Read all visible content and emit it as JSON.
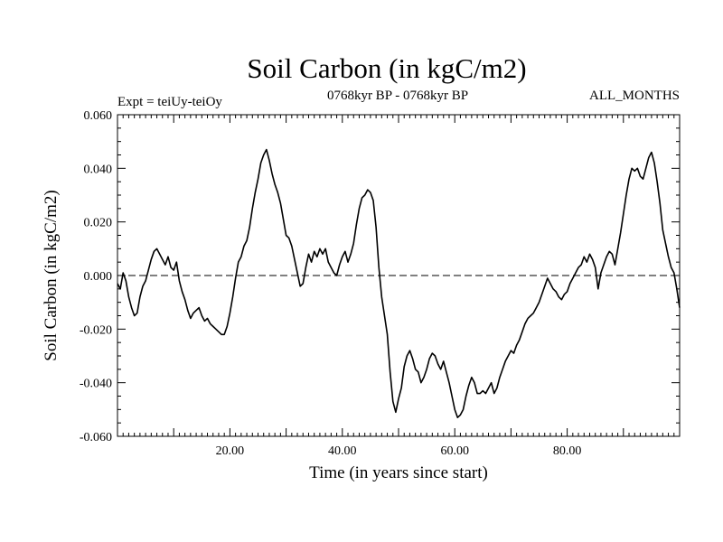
{
  "chart_data": {
    "type": "line",
    "title": "Soil Carbon (in kgC/m2)",
    "subtitle_left": "Expt = teiUy-teiOy",
    "subtitle_center": "0768kyr BP - 0768kyr BP",
    "subtitle_right": "ALL_MONTHS",
    "xlabel": "Time (in years since start)",
    "ylabel": "Soil Carbon (in kgC/m2)",
    "xlim": [
      0,
      100
    ],
    "ylim": [
      -0.06,
      0.06
    ],
    "xticks": [
      20,
      40,
      60,
      80
    ],
    "xtick_labels": [
      "20.00",
      "40.00",
      "60.00",
      "80.00"
    ],
    "yticks": [
      0.06,
      0.04,
      0.02,
      0,
      -0.02,
      -0.04,
      -0.06
    ],
    "ytick_labels": [
      "0.060",
      "0.040",
      "0.020",
      "0.000",
      "-0.020",
      "-0.040",
      "-0.060"
    ],
    "reference_line": {
      "y": 0,
      "style": "dashed"
    },
    "series": [
      {
        "name": "Soil Carbon",
        "x": [
          0,
          0.5,
          1,
          1.5,
          2,
          2.5,
          3,
          3.5,
          4,
          4.5,
          5,
          5.5,
          6,
          6.5,
          7,
          7.5,
          8,
          8.5,
          9,
          9.5,
          10,
          10.5,
          11,
          11.5,
          12,
          12.5,
          13,
          13.5,
          14,
          14.5,
          15,
          15.5,
          16,
          16.5,
          17,
          17.5,
          18,
          18.5,
          19,
          19.5,
          20,
          20.5,
          21,
          21.5,
          22,
          22.5,
          23,
          23.5,
          24,
          24.5,
          25,
          25.5,
          26,
          26.5,
          27,
          27.5,
          28,
          28.5,
          29,
          29.5,
          30,
          30.5,
          31,
          31.5,
          32,
          32.5,
          33,
          33.5,
          34,
          34.5,
          35,
          35.5,
          36,
          36.5,
          37,
          37.5,
          38,
          38.5,
          39,
          39.5,
          40,
          40.5,
          41,
          41.5,
          42,
          42.5,
          43,
          43.5,
          44,
          44.5,
          45,
          45.5,
          46,
          46.5,
          47,
          47.5,
          48,
          48.5,
          49,
          49.5,
          50,
          50.5,
          51,
          51.5,
          52,
          52.5,
          53,
          53.5,
          54,
          54.5,
          55,
          55.5,
          56,
          56.5,
          57,
          57.5,
          58,
          58.5,
          59,
          59.5,
          60,
          60.5,
          61,
          61.5,
          62,
          62.5,
          63,
          63.5,
          64,
          64.5,
          65,
          65.5,
          66,
          66.5,
          67,
          67.5,
          68,
          68.5,
          69,
          69.5,
          70,
          70.5,
          71,
          71.5,
          72,
          72.5,
          73,
          73.5,
          74,
          74.5,
          75,
          75.5,
          76,
          76.5,
          77,
          77.5,
          78,
          78.5,
          79,
          79.5,
          80,
          80.5,
          81,
          81.5,
          82,
          82.5,
          83,
          83.5,
          84,
          84.5,
          85,
          85.5,
          86,
          86.5,
          87,
          87.5,
          88,
          88.5,
          89,
          89.5,
          90,
          90.5,
          91,
          91.5,
          92,
          92.5,
          93,
          93.5,
          94,
          94.5,
          95,
          95.5,
          96,
          96.5,
          97,
          97.5,
          98,
          98.5,
          99,
          99.5,
          100
        ],
        "y": [
          -0.003,
          -0.005,
          0.001,
          -0.002,
          -0.008,
          -0.012,
          -0.015,
          -0.014,
          -0.008,
          -0.004,
          -0.002,
          0.002,
          0.006,
          0.009,
          0.01,
          0.008,
          0.006,
          0.004,
          0.007,
          0.003,
          0.002,
          0.005,
          -0.002,
          -0.006,
          -0.009,
          -0.013,
          -0.016,
          -0.014,
          -0.013,
          -0.012,
          -0.015,
          -0.017,
          -0.016,
          -0.018,
          -0.019,
          -0.02,
          -0.021,
          -0.022,
          -0.022,
          -0.019,
          -0.014,
          -0.008,
          -0.001,
          0.005,
          0.007,
          0.011,
          0.013,
          0.018,
          0.025,
          0.031,
          0.036,
          0.042,
          0.045,
          0.047,
          0.043,
          0.038,
          0.034,
          0.031,
          0.027,
          0.021,
          0.015,
          0.014,
          0.011,
          0.006,
          0.001,
          -0.004,
          -0.003,
          0.003,
          0.008,
          0.005,
          0.009,
          0.007,
          0.01,
          0.008,
          0.01,
          0.005,
          0.003,
          0.001,
          0.0,
          0.004,
          0.007,
          0.009,
          0.005,
          0.008,
          0.012,
          0.019,
          0.025,
          0.029,
          0.03,
          0.032,
          0.031,
          0.028,
          0.018,
          0.003,
          -0.008,
          -0.015,
          -0.022,
          -0.036,
          -0.047,
          -0.051,
          -0.046,
          -0.042,
          -0.034,
          -0.03,
          -0.028,
          -0.031,
          -0.035,
          -0.036,
          -0.04,
          -0.038,
          -0.035,
          -0.031,
          -0.029,
          -0.03,
          -0.033,
          -0.035,
          -0.032,
          -0.036,
          -0.04,
          -0.045,
          -0.05,
          -0.053,
          -0.052,
          -0.05,
          -0.045,
          -0.041,
          -0.038,
          -0.04,
          -0.044,
          -0.044,
          -0.043,
          -0.044,
          -0.042,
          -0.04,
          -0.044,
          -0.042,
          -0.038,
          -0.035,
          -0.032,
          -0.03,
          -0.028,
          -0.029,
          -0.026,
          -0.024,
          -0.021,
          -0.018,
          -0.016,
          -0.015,
          -0.014,
          -0.012,
          -0.01,
          -0.007,
          -0.004,
          -0.001,
          -0.003,
          -0.005,
          -0.006,
          -0.008,
          -0.009,
          -0.007,
          -0.006,
          -0.003,
          -0.001,
          0.001,
          0.003,
          0.004,
          0.007,
          0.005,
          0.008,
          0.006,
          0.003,
          -0.005,
          0.001,
          0.004,
          0.007,
          0.009,
          0.008,
          0.004,
          0.01,
          0.016,
          0.023,
          0.03,
          0.036,
          0.04,
          0.039,
          0.04,
          0.037,
          0.036,
          0.04,
          0.044,
          0.046,
          0.042,
          0.035,
          0.027,
          0.017,
          0.012,
          0.007,
          0.003,
          0.001,
          -0.005,
          -0.012
        ]
      }
    ]
  }
}
